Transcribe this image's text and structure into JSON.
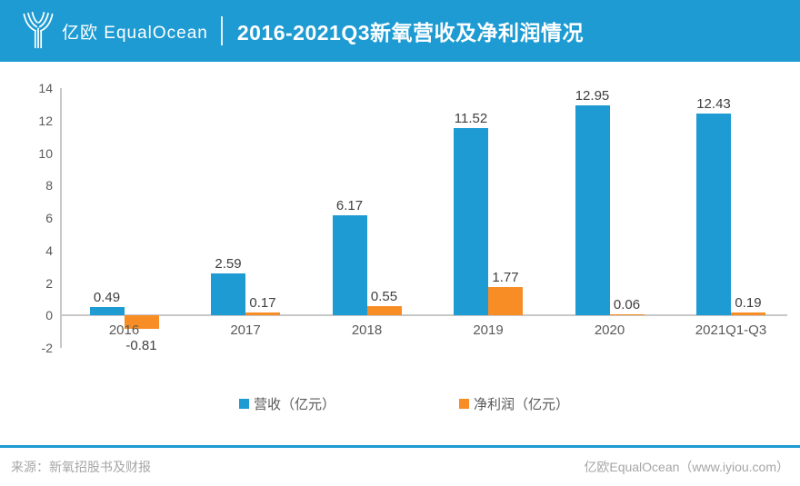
{
  "colors": {
    "brand": "#1E9BD2",
    "revenue": "#1E9BD2",
    "profit": "#F78D24",
    "axis": "#C8C8C8",
    "label_dark": "#3F3F3F",
    "label_gray": "#595959",
    "footer_text": "#A6A6A6"
  },
  "header": {
    "logo_text": "亿欧 EqualOcean",
    "title": "2016-2021Q3新氧营收及净利润情况"
  },
  "chart_data": {
    "type": "bar",
    "title": "2016-2021Q3新氧营收及净利润情况",
    "categories": [
      "2016",
      "2017",
      "2018",
      "2019",
      "2020",
      "2021Q1-Q3"
    ],
    "series": [
      {
        "name": "营收（亿元）",
        "color": "#1E9BD2",
        "values": [
          0.49,
          2.59,
          6.17,
          11.52,
          12.95,
          12.43
        ]
      },
      {
        "name": "净利润（亿元）",
        "color": "#F78D24",
        "values": [
          -0.81,
          0.17,
          0.55,
          1.77,
          0.06,
          0.19
        ]
      }
    ],
    "data_labels": [
      [
        "0.49",
        "2.59",
        "6.17",
        "11.52",
        "12.95",
        "12.43"
      ],
      [
        "-0.81",
        "0.17",
        "0.55",
        "1.77",
        "0.06",
        "0.19"
      ]
    ],
    "ylim": [
      -2,
      14
    ],
    "yticks": [
      14,
      12,
      10,
      8,
      6,
      4,
      2,
      0,
      -2
    ],
    "grid": false,
    "legend_position": "bottom"
  },
  "footer": {
    "source": "来源：新氧招股书及财报",
    "credit": "亿欧EqualOcean（www.iyiou.com）"
  }
}
